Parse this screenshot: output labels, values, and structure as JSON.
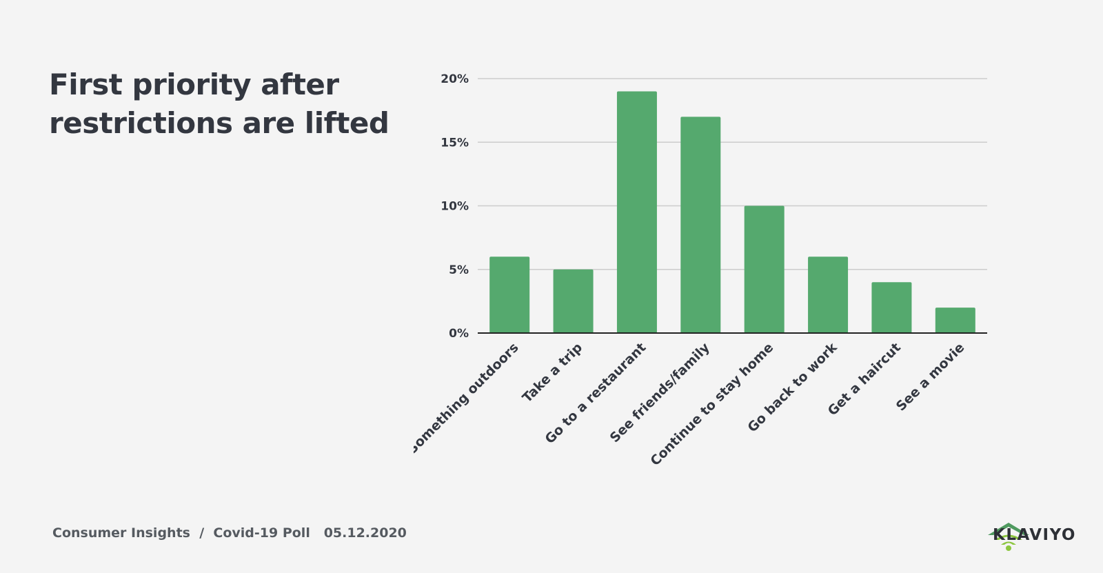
{
  "title": "First priority after restrictions are lifted",
  "footer": {
    "section": "Consumer Insights",
    "separator": "/",
    "poll": "Covid-19 Poll",
    "date": "05.12.2020"
  },
  "brand": {
    "name": "KLAVIYO",
    "logo_icon": "klaviyo-wifi-icon",
    "logo_colors": [
      "#4f9a5f",
      "#8cc63f"
    ]
  },
  "colors": {
    "bar": "#55a96e",
    "grid": "#cccccc",
    "axis": "#222222",
    "text": "#333740"
  },
  "chart_data": {
    "type": "bar",
    "title": "First priority after restrictions are lifted",
    "categories": [
      "Something outdoors",
      "Take a trip",
      "Go to a restaurant",
      "See friends/family",
      "Continue to stay home",
      "Go back to work",
      "Get a haircut",
      "See a movie"
    ],
    "values": [
      6,
      5,
      19,
      17,
      10,
      6,
      4,
      2
    ],
    "value_unit": "%",
    "ylim": [
      0,
      20
    ],
    "yticks": [
      0,
      5,
      10,
      15,
      20
    ],
    "ytick_labels": [
      "0%",
      "5%",
      "10%",
      "15%",
      "20%"
    ],
    "xlabel": "",
    "ylabel": "",
    "grid": true,
    "legend": "none"
  }
}
